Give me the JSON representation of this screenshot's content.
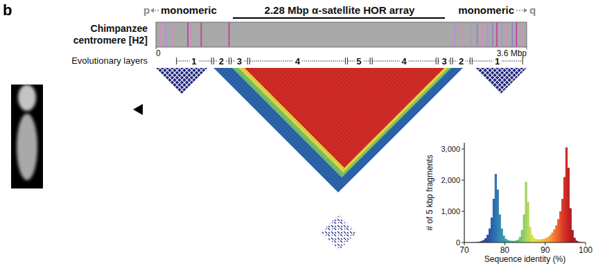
{
  "panel": "b",
  "title": [
    "Chimpanzee",
    "centromere [H2]"
  ],
  "header": {
    "p": "p",
    "left": "monomeric",
    "center": "2.28 Mbp α-satellite HOR array",
    "right": "monomeric",
    "q": "q"
  },
  "genome_axis": {
    "lim": [
      0,
      3.6
    ],
    "ticks": [
      0,
      {
        "value": 3.6,
        "label": "3.6 Mbp"
      }
    ]
  },
  "track": [
    {
      "position": 0.04,
      "color": "#d98ac0"
    },
    {
      "position": 0.1,
      "color": "#b48fd8"
    },
    {
      "position": 0.17,
      "color": "#d98ac0"
    },
    {
      "position": 0.31,
      "color": "#c04a9a"
    },
    {
      "position": 0.34,
      "color": "#d98ac0"
    },
    {
      "position": 0.44,
      "color": "#c04a9a"
    },
    {
      "position": 0.71,
      "color": "#c04a9a"
    },
    {
      "position": 2.9,
      "color": "#b48fd8"
    },
    {
      "position": 2.97,
      "color": "#d98ac0"
    },
    {
      "position": 3.06,
      "color": "#b48fd8"
    },
    {
      "position": 3.12,
      "color": "#9a7fd0"
    },
    {
      "position": 3.17,
      "color": "#d98ac0"
    },
    {
      "position": 3.22,
      "color": "#b48fd8"
    },
    {
      "position": 3.27,
      "color": "#9a7fd0"
    },
    {
      "position": 3.31,
      "color": "#c04a9a"
    },
    {
      "position": 3.36,
      "color": "#b48fd8"
    },
    {
      "position": 3.41,
      "color": "#d98ac0"
    },
    {
      "position": 3.46,
      "color": "#9a7fd0"
    },
    {
      "position": 3.5,
      "color": "#c04a9a"
    },
    {
      "position": 3.55,
      "color": "#d98ac0"
    }
  ],
  "layers": {
    "label": "Evolutionary layers",
    "segments": [
      {
        "layer": 1,
        "start": 0.19,
        "end": 0.55
      },
      {
        "layer": 2,
        "start": 0.55,
        "end": 0.72
      },
      {
        "layer": 3,
        "start": 0.72,
        "end": 0.9
      },
      {
        "layer": 4,
        "start": 0.9,
        "end": 1.85
      },
      {
        "layer": 5,
        "start": 1.85,
        "end": 2.09
      },
      {
        "layer": 4,
        "start": 2.09,
        "end": 2.73
      },
      {
        "layer": 3,
        "start": 2.73,
        "end": 2.87
      },
      {
        "layer": 2,
        "start": 2.87,
        "end": 3.06
      },
      {
        "layer": 1,
        "start": 3.06,
        "end": 3.57
      }
    ]
  },
  "heatmap": {
    "monomeric_blocks": [
      {
        "start": 0.0,
        "end": 0.5,
        "identity": 72
      },
      {
        "start": 3.1,
        "end": 3.6,
        "identity": 72
      }
    ],
    "hor_blocks": [
      {
        "start": 0.56,
        "end": 2.98,
        "identity": 77
      },
      {
        "start": 0.74,
        "end": 2.87,
        "identity": 84
      },
      {
        "start": 0.8,
        "end": 2.84,
        "identity": 88
      },
      {
        "start": 0.86,
        "end": 2.8,
        "identity": 95
      }
    ],
    "pairs": [
      {
        "a": [
          0.0,
          0.35
        ],
        "b": [
          3.2,
          3.55
        ],
        "identity": 73
      }
    ]
  },
  "chart_data": {
    "type": "histogram",
    "x_label": "Sequence identity (%)",
    "y_label": "# of 5 kbp fragments",
    "bins": [
      70,
      70.5,
      71,
      71.5,
      72,
      72.5,
      73,
      73.5,
      74,
      74.5,
      75,
      75.5,
      76,
      76.5,
      77,
      77.5,
      78,
      78.5,
      79,
      79.5,
      80,
      80.5,
      81,
      81.5,
      82,
      82.5,
      83,
      83.5,
      84,
      84.5,
      85,
      85.5,
      86,
      86.5,
      87,
      87.5,
      88,
      88.5,
      89,
      89.5,
      90,
      90.5,
      91,
      91.5,
      92,
      92.5,
      93,
      93.5,
      94,
      94.5,
      95,
      95.5,
      96,
      96.5,
      97,
      97.5,
      98,
      98.5,
      99,
      99.5,
      100
    ],
    "counts": [
      5,
      5,
      8,
      8,
      10,
      15,
      20,
      30,
      50,
      80,
      140,
      250,
      450,
      800,
      1400,
      2200,
      1700,
      900,
      450,
      220,
      120,
      80,
      60,
      55,
      55,
      60,
      90,
      180,
      400,
      900,
      1950,
      1300,
      500,
      250,
      150,
      110,
      100,
      100,
      110,
      120,
      150,
      180,
      240,
      320,
      420,
      550,
      750,
      1000,
      1400,
      2100,
      3050,
      2400,
      1100,
      400,
      150,
      60,
      30,
      15,
      8,
      5
    ],
    "xlim": [
      70,
      100
    ],
    "xticks": [
      70,
      80,
      90,
      100
    ],
    "ylim": [
      0,
      3200
    ],
    "yticks": [
      0,
      {
        "value": 1000,
        "label": "1,000"
      },
      {
        "value": 2000,
        "label": "2,000"
      },
      {
        "value": 3000,
        "label": "3,000"
      }
    ],
    "grid": false
  }
}
